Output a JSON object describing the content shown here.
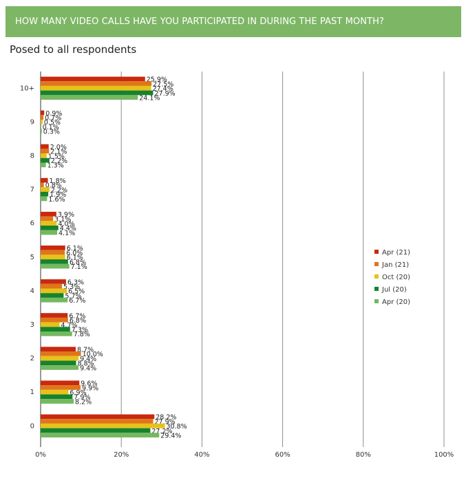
{
  "header": {
    "banner_title": "HOW MANY VIDEO CALLS HAVE YOU PARTICIPATED IN DURING THE PAST MONTH?",
    "subtitle": "Posed to all respondents"
  },
  "colors": {
    "banner": "#7db665",
    "Apr (21)": "#c8290f",
    "Jan (21)": "#e0751a",
    "Oct (20)": "#e6c21a",
    "Jul (20)": "#16822e",
    "Apr (20)": "#74b85f"
  },
  "chart_data": {
    "type": "bar",
    "orientation": "horizontal",
    "title": "HOW MANY VIDEO CALLS HAVE YOU PARTICIPATED IN DURING THE PAST MONTH?",
    "categories": [
      "10+",
      "9",
      "8",
      "7",
      "6",
      "5",
      "4",
      "3",
      "2",
      "1",
      "0"
    ],
    "series": [
      {
        "name": "Apr (21)",
        "values": [
          25.9,
          0.9,
          2.0,
          1.8,
          3.9,
          6.1,
          6.3,
          6.7,
          8.7,
          9.6,
          28.2
        ],
        "labels": [
          "25.9%",
          "0.9%",
          "2.0%",
          "1.8%",
          "3.9%",
          "6.1%",
          "6.3%",
          "6.7%",
          "8.7%",
          "9.6%",
          "28.2%"
        ]
      },
      {
        "name": "Jan (21)",
        "values": [
          27.5,
          0.7,
          2.1,
          0.8,
          3.1,
          6.0,
          5.3,
          6.8,
          10.0,
          9.9,
          27.9
        ],
        "labels": [
          "27.5%",
          "0.7%",
          "2.1%",
          "0.8%",
          "3.1%",
          "6.0%",
          "5.3%",
          "6.8%",
          "10.0%",
          "9.9%",
          "27.9%"
        ]
      },
      {
        "name": "Oct (20)",
        "values": [
          27.4,
          0.5,
          1.5,
          2.2,
          4.0,
          6.1,
          6.5,
          4.7,
          9.4,
          6.9,
          30.8
        ],
        "labels": [
          "27.4%",
          "0.5%",
          "1.5%",
          "2.2%",
          "4.0%",
          "6.1%",
          "6.5%",
          "4.7%",
          "9.4%",
          "6.9%",
          "30.8%"
        ]
      },
      {
        "name": "Jul (20)",
        "values": [
          27.9,
          0.1,
          2.2,
          1.9,
          4.4,
          6.8,
          5.7,
          7.3,
          8.8,
          7.9,
          27.2
        ],
        "labels": [
          "27.9%",
          "0.1%",
          "2.2%",
          "1.9%",
          "4.4%",
          "6.8%",
          "5.7%",
          "7.3%",
          "8.8%",
          "7.9%",
          "27.2%"
        ]
      },
      {
        "name": "Apr (20)",
        "values": [
          24.1,
          0.3,
          1.3,
          1.6,
          4.1,
          7.1,
          6.7,
          7.8,
          9.4,
          8.2,
          29.4
        ],
        "labels": [
          "24.1%",
          "0.3%",
          "1.3%",
          "1.6%",
          "4.1%",
          "7.1%",
          "6.7%",
          "7.8%",
          "9.4%",
          "8.2%",
          "29.4%"
        ]
      }
    ],
    "xlim": [
      0,
      100
    ],
    "x_ticks": [
      "0%",
      "20%",
      "40%",
      "60%",
      "80%",
      "100%"
    ],
    "grid": true,
    "legend_position": "right"
  }
}
